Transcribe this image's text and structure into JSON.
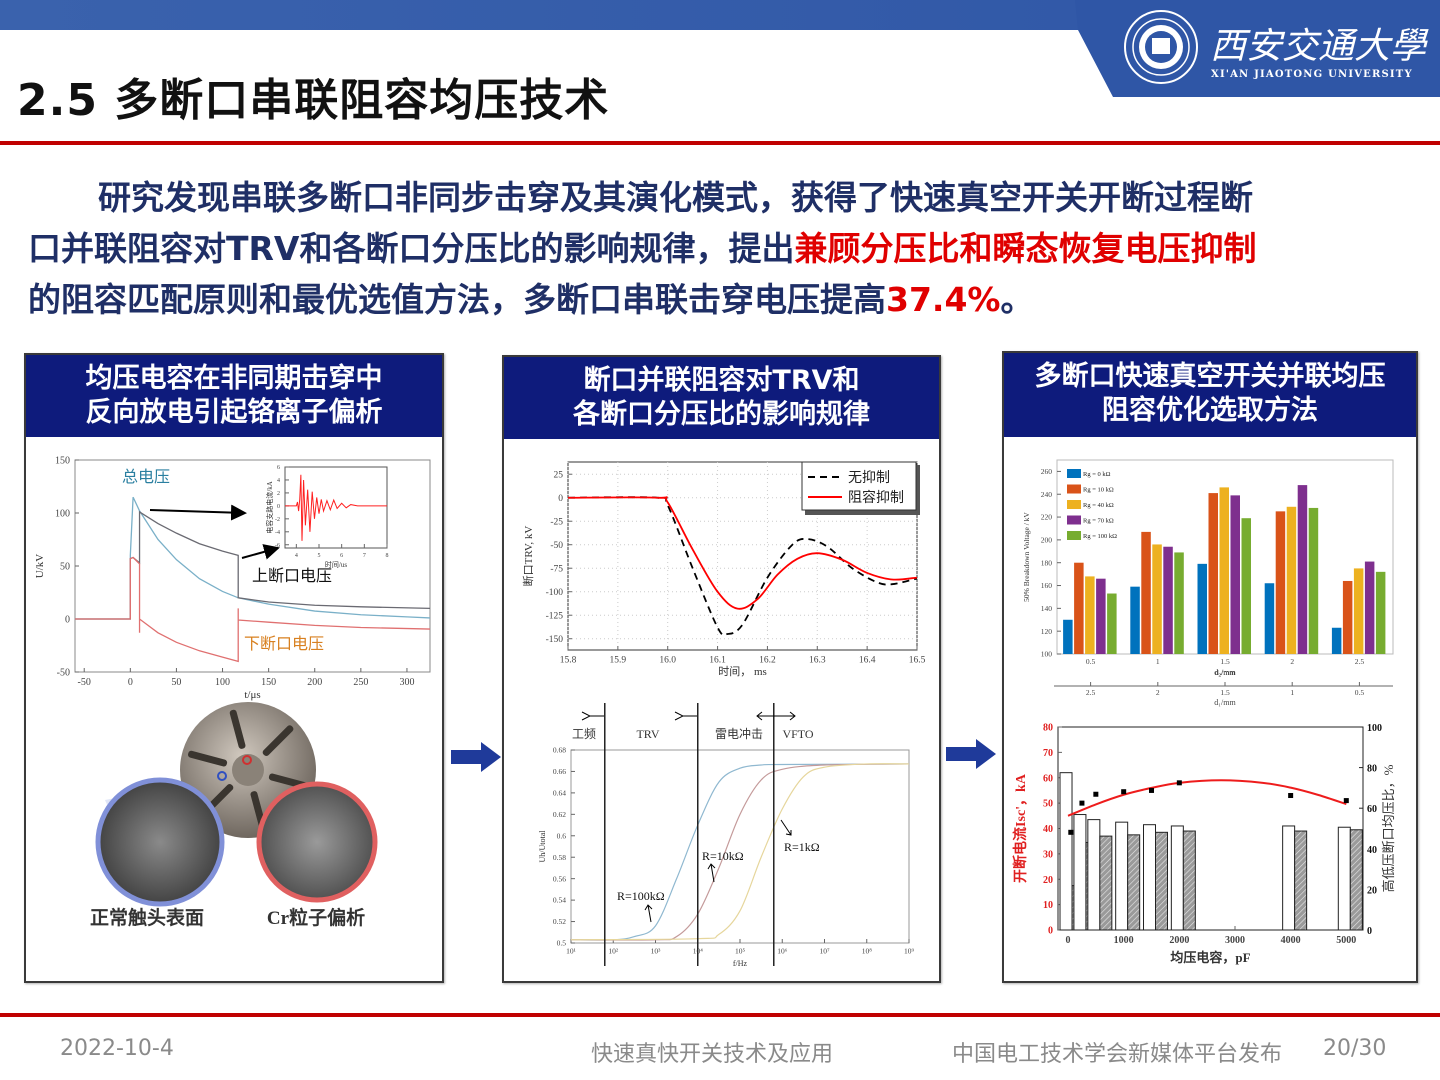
{
  "header": {
    "title": "2.5 多断口串联阻容均压技术",
    "logo_cn": "西安交通大學",
    "logo_en": "XI'AN JIAOTONG UNIVERSITY"
  },
  "summary": {
    "line1": "研究发现串联多断口非同步击穿及其演化模式，获得了快速真空开关开断过程断",
    "line2_a": "口并联阻容对TRV和各断口分压比的影响规律，提出",
    "line2_red": "兼顾分压比和瞬态恢复电压抑制",
    "line3_a": "的阻容匹配原则和最优选值方法，多断口串联击穿电压提高",
    "line3_red": "37.4%",
    "line3_end": "。"
  },
  "panels": [
    {
      "title_line1": "均压电容在非同期击穿中",
      "title_line2": "反向放电引起铬离子偏析",
      "photo_labels": [
        "正常触头表面",
        "Cr粒子偏析"
      ]
    },
    {
      "title_line1": "断口并联阻容对TRV和",
      "title_line2": "各断口分压比的影响规律"
    },
    {
      "title_line1": "多断口快速真空开关并联均压",
      "title_line2": "阻容优化选取方法"
    }
  ],
  "colors": {
    "accent_red": "#c00000",
    "panel_header": "#0e1b7c",
    "brand_blue": "#2f56a6",
    "text_navy": "#1f2f66",
    "highlight_red": "#e00000"
  },
  "footer": {
    "date": "2022-10-4",
    "center": "快速真快开关技术及应用",
    "publisher": "中国电工技术学会新媒体平台发布",
    "page": "20/30"
  },
  "chart_data": [
    {
      "type": "line",
      "xlabel": "t/μs",
      "ylabel": "U/kV",
      "xlim": [
        -60,
        325
      ],
      "ylim": [
        -50,
        150
      ],
      "xticks": [
        "-50",
        "0",
        "50",
        "100",
        "150",
        "200",
        "250",
        "300"
      ],
      "yticks": [
        "-50",
        "0",
        "50",
        "100",
        "150"
      ],
      "series": [
        {
          "name": "总电压",
          "color": "#7ab0c8",
          "points": [
            [
              -60,
              0
            ],
            [
              0,
              0
            ],
            [
              0,
              60
            ],
            [
              3,
              115
            ],
            [
              10,
              102
            ],
            [
              30,
              75
            ],
            [
              50,
              56
            ],
            [
              75,
              38
            ],
            [
              100,
              26
            ],
            [
              117,
              20
            ],
            [
              150,
              14
            ],
            [
              200,
              7.5
            ],
            [
              250,
              4
            ],
            [
              300,
              2
            ],
            [
              325,
              1
            ]
          ]
        },
        {
          "name": "上断口电压",
          "color": "#6a6a72",
          "points": [
            [
              -60,
              0
            ],
            [
              0,
              0
            ],
            [
              0,
              57
            ],
            [
              3,
              58
            ],
            [
              10,
              53
            ],
            [
              10,
              101
            ],
            [
              30,
              90
            ],
            [
              50,
              81
            ],
            [
              75,
              71
            ],
            [
              100,
              64
            ],
            [
              117,
              60
            ],
            [
              117,
              20
            ],
            [
              150,
              16
            ],
            [
              200,
              13
            ],
            [
              250,
              11.5
            ],
            [
              325,
              10
            ]
          ]
        },
        {
          "name": "下断口电压",
          "color": "#e07070",
          "points": [
            [
              -60,
              0
            ],
            [
              0,
              0
            ],
            [
              0,
              57
            ],
            [
              3,
              58
            ],
            [
              10,
              52
            ],
            [
              10,
              -13
            ],
            [
              10,
              0
            ],
            [
              30,
              -13
            ],
            [
              50,
              -22
            ],
            [
              75,
              -30
            ],
            [
              100,
              -36
            ],
            [
              117,
              -40
            ],
            [
              117,
              10
            ],
            [
              117,
              -1
            ],
            [
              150,
              -3
            ],
            [
              200,
              -6
            ],
            [
              250,
              -8
            ],
            [
              325,
              -9.5
            ]
          ]
        }
      ]
    },
    {
      "type": "line",
      "xlabel": "时间/us",
      "ylabel": "电容支路电流/kA",
      "xlim": [
        3.5,
        8
      ],
      "ylim": [
        -6.5,
        6
      ],
      "xticks": [
        "4",
        "5",
        "6",
        "7",
        "8"
      ],
      "yticks": [
        "-6",
        "-4",
        "-2",
        "0",
        "2",
        "4",
        "6"
      ],
      "series": [
        {
          "color": "#ff2020",
          "points": [
            [
              3.5,
              0
            ],
            [
              4.0,
              0
            ],
            [
              4.05,
              0.6
            ],
            [
              4.1,
              -0.8
            ],
            [
              4.15,
              1
            ],
            [
              4.2,
              4.8
            ],
            [
              4.25,
              -5.4
            ],
            [
              4.32,
              4
            ],
            [
              4.4,
              -3
            ],
            [
              4.5,
              2.5
            ],
            [
              4.6,
              -4
            ],
            [
              4.7,
              2.2
            ],
            [
              4.8,
              -2
            ],
            [
              4.9,
              1.3
            ],
            [
              5.0,
              -1.2
            ],
            [
              5.1,
              1
            ],
            [
              5.2,
              -0.8
            ],
            [
              5.35,
              0.8
            ],
            [
              5.5,
              -0.6
            ],
            [
              5.65,
              0.9
            ],
            [
              5.8,
              -0.4
            ],
            [
              6.0,
              0.4
            ],
            [
              6.2,
              -0.3
            ],
            [
              6.4,
              0.2
            ],
            [
              6.7,
              0
            ],
            [
              8,
              0
            ]
          ]
        }
      ]
    },
    {
      "type": "line",
      "xlabel": "时间， ms",
      "ylabel": "断口TRV, kV",
      "xlim": [
        15.8,
        16.5
      ],
      "ylim": [
        -162,
        38
      ],
      "xticks": [
        "15.8",
        "15.9",
        "16.0",
        "16.1",
        "16.2",
        "16.3",
        "16.4",
        "16.5"
      ],
      "yticks": [
        "25",
        "0",
        "-25",
        "-50",
        "-75",
        "-100",
        "-125",
        "-150"
      ],
      "grid": true,
      "legend": "top-right",
      "series": [
        {
          "name": "无抑制",
          "color": "#000000",
          "dashed": true,
          "points": [
            [
              15.8,
              0
            ],
            [
              15.98,
              0
            ],
            [
              16.0,
              -8
            ],
            [
              16.05,
              -75
            ],
            [
              16.1,
              -138
            ],
            [
              16.12,
              -145
            ],
            [
              16.15,
              -135
            ],
            [
              16.2,
              -85
            ],
            [
              16.25,
              -50
            ],
            [
              16.28,
              -44
            ],
            [
              16.32,
              -52
            ],
            [
              16.37,
              -75
            ],
            [
              16.42,
              -90
            ],
            [
              16.45,
              -92
            ],
            [
              16.5,
              -86
            ]
          ]
        },
        {
          "name": "阻容抑制",
          "color": "#ff0000",
          "points": [
            [
              15.8,
              0
            ],
            [
              15.98,
              0
            ],
            [
              16.0,
              -5
            ],
            [
              16.05,
              -55
            ],
            [
              16.1,
              -100
            ],
            [
              16.14,
              -118
            ],
            [
              16.18,
              -108
            ],
            [
              16.22,
              -82
            ],
            [
              16.26,
              -65
            ],
            [
              16.3,
              -59
            ],
            [
              16.35,
              -66
            ],
            [
              16.4,
              -80
            ],
            [
              16.45,
              -87
            ],
            [
              16.5,
              -85
            ]
          ]
        }
      ]
    },
    {
      "type": "line",
      "xlabel": "f/Hz",
      "ylabel": "Uh/Utotal",
      "xscale": "log",
      "xlim": [
        10,
        1000000000
      ],
      "ylim": [
        0.5,
        0.68
      ],
      "xticks": [
        "10¹",
        "10²",
        "10³",
        "10⁴",
        "10⁵",
        "10⁶",
        "10⁷",
        "10⁸",
        "10⁹"
      ],
      "yticks": [
        "0.5",
        "0.52",
        "0.54",
        "0.56",
        "0.58",
        "0.6",
        "0.62",
        "0.64",
        "0.66",
        "0.68"
      ],
      "regions": [
        "工频",
        "TRV",
        "雷电冲击",
        "VFTO"
      ],
      "boundaries_hz": [
        63,
        10000,
        630000
      ],
      "series": [
        {
          "name": "R=100kΩ",
          "color": "#8fb8d0",
          "points": [
            [
              10,
              0.503
            ],
            [
              100,
              0.503
            ],
            [
              316,
              0.506
            ],
            [
              1000,
              0.516
            ],
            [
              3162,
              0.56
            ],
            [
              10000,
              0.61
            ],
            [
              31623,
              0.65
            ],
            [
              100000,
              0.663
            ],
            [
              316228,
              0.666
            ],
            [
              1000000,
              0.6665
            ],
            [
              1000000000,
              0.667
            ]
          ]
        },
        {
          "name": "R=10kΩ",
          "color": "#c49a9a",
          "points": [
            [
              10,
              0.503
            ],
            [
              1000,
              0.503
            ],
            [
              3162,
              0.506
            ],
            [
              10000,
              0.527
            ],
            [
              31623,
              0.57
            ],
            [
              100000,
              0.62
            ],
            [
              316228,
              0.652
            ],
            [
              1000000,
              0.662
            ],
            [
              10000000,
              0.666
            ],
            [
              1000000000,
              0.667
            ]
          ]
        },
        {
          "name": "R=1kΩ",
          "color": "#e6d69c",
          "points": [
            [
              10,
              0.503
            ],
            [
              10000,
              0.504
            ],
            [
              31623,
              0.508
            ],
            [
              100000,
              0.53
            ],
            [
              316228,
              0.58
            ],
            [
              1000000,
              0.625
            ],
            [
              3162278,
              0.655
            ],
            [
              10000000,
              0.664
            ],
            [
              100000000,
              0.667
            ],
            [
              1000000000,
              0.667
            ]
          ]
        }
      ]
    },
    {
      "type": "bar",
      "categories": [
        "0.5",
        "1",
        "1.5",
        "2",
        "2.5"
      ],
      "categories2": [
        "2.5",
        "2",
        "1.5",
        "1",
        "0.5"
      ],
      "xlabel": "d₂/mm",
      "xlabel2": "d₁/mm",
      "ylabel": "50% Breakdown Voltage / kV",
      "ylim": [
        100,
        270
      ],
      "yticks": [
        "100",
        "120",
        "140",
        "160",
        "180",
        "200",
        "220",
        "240",
        "260"
      ],
      "legend": "top-left",
      "series": [
        {
          "name": "Rg = 0 kΩ",
          "color": "#0072bd",
          "values": [
            130,
            159,
            179,
            162,
            123
          ]
        },
        {
          "name": "Rg = 10 kΩ",
          "color": "#d95319",
          "values": [
            180,
            207,
            241,
            225,
            164
          ]
        },
        {
          "name": "Rg = 40 kΩ",
          "color": "#edb120",
          "values": [
            168,
            196,
            246,
            229,
            175
          ]
        },
        {
          "name": "Rg = 70 kΩ",
          "color": "#7e2f8e",
          "values": [
            166,
            194,
            239,
            248,
            181
          ]
        },
        {
          "name": "Rg = 100 kΩ",
          "color": "#77ac30",
          "values": [
            153,
            189,
            219,
            228,
            172
          ]
        }
      ]
    },
    {
      "type": "bar",
      "xlabel": "均压电容，pF",
      "ylabel": "开断电流Isc'，kA",
      "ylabel_right": "高低压断口均压比，%",
      "xlim": [
        -180,
        5300
      ],
      "ylim": [
        0,
        80
      ],
      "ylim_right": [
        0,
        100
      ],
      "xticks": [
        "0",
        "1000",
        "2000",
        "3000",
        "4000",
        "5000"
      ],
      "yticks": [
        "0",
        "10",
        "20",
        "30",
        "40",
        "50",
        "60",
        "70",
        "80"
      ],
      "yticks_right": [
        "0",
        "20",
        "40",
        "60",
        "80",
        "100"
      ],
      "capacitance_pf": [
        0,
        250,
        500,
        1000,
        1500,
        2000,
        4000,
        5000
      ],
      "open_bars": [
        62,
        45.5,
        43.5,
        42.5,
        41.5,
        41,
        41,
        40.5
      ],
      "hatched_bars": [
        17.5,
        34.5,
        37,
        37.5,
        38.5,
        39,
        39,
        39.5
      ],
      "scatter": [
        [
          50,
          38.5
        ],
        [
          250,
          50
        ],
        [
          500,
          53.5
        ],
        [
          1000,
          54.5
        ],
        [
          1500,
          55
        ],
        [
          2000,
          58
        ],
        [
          4000,
          53
        ],
        [
          5000,
          51
        ]
      ],
      "fit_curve": [
        [
          0,
          45
        ],
        [
          500,
          49.5
        ],
        [
          1000,
          53.3
        ],
        [
          1500,
          56
        ],
        [
          2000,
          58
        ],
        [
          2750,
          59
        ],
        [
          3500,
          58
        ],
        [
          4000,
          56.1
        ],
        [
          4500,
          53.2
        ],
        [
          5000,
          49.6
        ]
      ],
      "fit_color": "#ee1c1c"
    }
  ]
}
